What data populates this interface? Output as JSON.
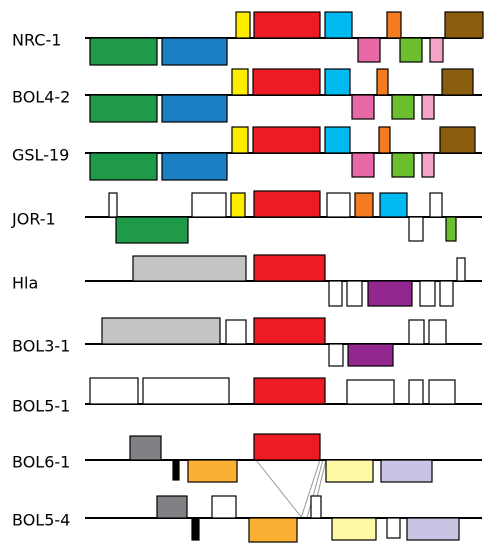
{
  "rows": [
    {
      "label": "NRC-1"
    },
    {
      "label": "BOL4-2"
    },
    {
      "label": "GSL-19"
    },
    {
      "label": "JOR-1"
    },
    {
      "label": "Hla"
    },
    {
      "label": "BOL3-1"
    },
    {
      "label": "BOL5-1"
    },
    {
      "label": "BOL6-1"
    },
    {
      "label": "BOL5-4"
    }
  ]
}
